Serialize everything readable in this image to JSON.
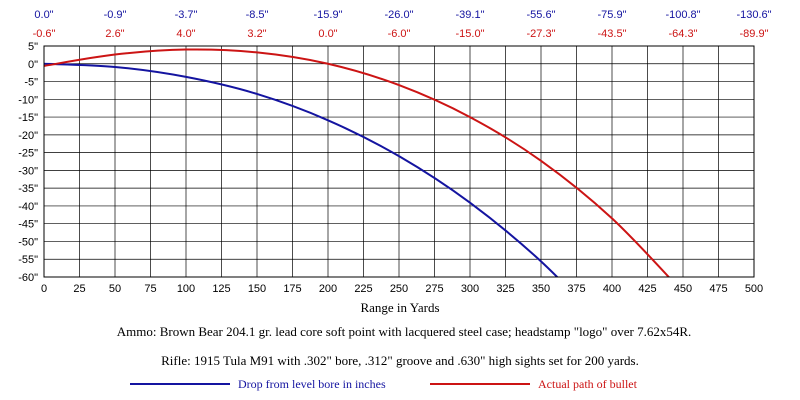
{
  "chart_data": {
    "type": "line",
    "title": "",
    "xlabel": "Range in Yards",
    "ylabel": "",
    "xlim": [
      0,
      500
    ],
    "ylim": [
      -60,
      5
    ],
    "x_ticks": [
      "0",
      "25",
      "50",
      "75",
      "100",
      "125",
      "150",
      "175",
      "200",
      "225",
      "250",
      "275",
      "300",
      "325",
      "350",
      "375",
      "400",
      "425",
      "450",
      "475",
      "500"
    ],
    "y_ticks": [
      "5\"",
      "0\"",
      "-5\"",
      "-10\"",
      "-15\"",
      "-20\"",
      "-25\"",
      "-30\"",
      "-35\"",
      "-40\"",
      "-45\"",
      "-50\"",
      "-55\"",
      "-60\""
    ],
    "y_tick_values": [
      5,
      0,
      -5,
      -10,
      -15,
      -20,
      -25,
      -30,
      -35,
      -40,
      -45,
      -50,
      -55,
      -60
    ],
    "grid": true,
    "top_labels": {
      "x": [
        0,
        50,
        100,
        150,
        200,
        250,
        300,
        350,
        400,
        450,
        500
      ],
      "drop": [
        "0.0\"",
        "-0.9\"",
        "-3.7\"",
        "-8.5\"",
        "-15.9\"",
        "-26.0\"",
        "-39.1\"",
        "-55.6\"",
        "-75.9\"",
        "-100.8\"",
        "-130.6\""
      ],
      "path": [
        "-0.6\"",
        "2.6\"",
        "4.0\"",
        "3.2\"",
        "0.0\"",
        "-6.0\"",
        "-15.0\"",
        "-27.3\"",
        "-43.5\"",
        "-64.3\"",
        "-89.9\""
      ]
    },
    "series": [
      {
        "name": "Drop from level bore in inches",
        "color": "#1414a0",
        "x": [
          0,
          50,
          100,
          150,
          200,
          250,
          300,
          350,
          400
        ],
        "y": [
          0.0,
          -0.9,
          -3.7,
          -8.5,
          -15.9,
          -26.0,
          -39.1,
          -55.6,
          -75.9
        ]
      },
      {
        "name": "Actual path of bullet",
        "color": "#cc1414",
        "x": [
          0,
          50,
          100,
          150,
          200,
          250,
          300,
          350,
          400,
          450
        ],
        "y": [
          -0.6,
          2.6,
          4.0,
          3.2,
          0.0,
          -6.0,
          -15.0,
          -27.3,
          -43.5,
          -64.3
        ]
      }
    ],
    "notes": [
      "Ammo:  Brown Bear 204.1 gr. lead core soft point with lacquered steel case; headstamp \"logo\" over 7.62x54R.",
      "Rifle:  1915 Tula M91 with .302\" bore, .312\" groove and .630\" high sights set for 200 yards."
    ]
  }
}
